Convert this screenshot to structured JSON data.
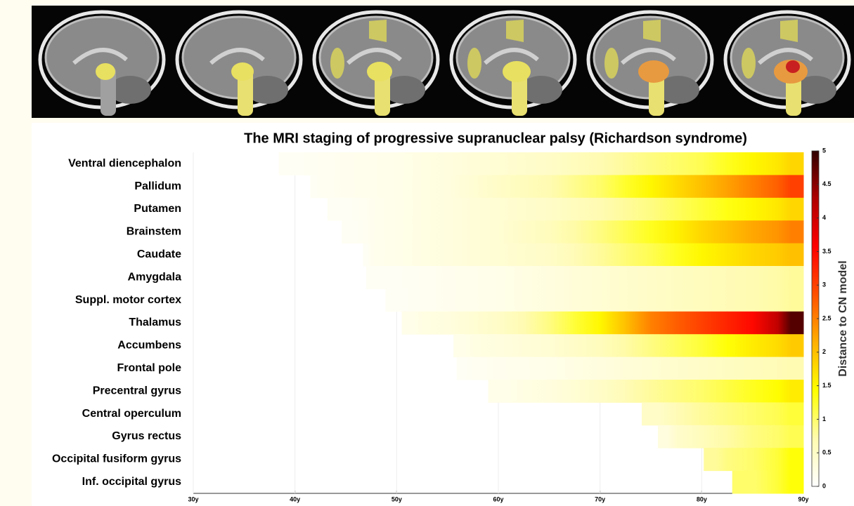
{
  "chart_data": {
    "type": "heatmap",
    "title": "The MRI staging of progressive supranuclear palsy (Richardson syndrome)",
    "x": [
      40,
      45,
      50,
      55,
      60,
      65,
      70,
      75,
      80,
      85,
      90
    ],
    "xlim": [
      30,
      90
    ],
    "xticks": [
      {
        "value": 30,
        "label": "30y"
      },
      {
        "value": 40,
        "label": "40y"
      },
      {
        "value": 50,
        "label": "50y"
      },
      {
        "value": 60,
        "label": "60y"
      },
      {
        "value": 70,
        "label": "70y"
      },
      {
        "value": 80,
        "label": "80y"
      },
      {
        "value": 90,
        "label": "90y"
      }
    ],
    "series": [
      {
        "name": "Ventral diencephalon",
        "start": 38.4,
        "values": [
          0.1,
          0.15,
          0.2,
          0.3,
          0.4,
          0.5,
          0.7,
          0.9,
          1.1,
          1.5,
          1.8
        ]
      },
      {
        "name": "Pallidum",
        "start": 41.5,
        "values": [
          0.1,
          0.15,
          0.2,
          0.3,
          0.5,
          0.7,
          1.0,
          1.5,
          2.0,
          2.5,
          3.0
        ]
      },
      {
        "name": "Putamen",
        "start": 43.2,
        "values": [
          null,
          0.1,
          0.2,
          0.3,
          0.4,
          0.5,
          0.7,
          0.9,
          1.2,
          1.5,
          1.8
        ]
      },
      {
        "name": "Brainstem",
        "start": 44.6,
        "values": [
          null,
          0.1,
          0.2,
          0.3,
          0.4,
          0.6,
          0.9,
          1.3,
          1.8,
          2.2,
          2.5
        ]
      },
      {
        "name": "Caudate",
        "start": 46.7,
        "values": [
          null,
          0.1,
          0.2,
          0.3,
          0.4,
          0.5,
          0.8,
          1.1,
          1.5,
          1.8,
          2.0
        ]
      },
      {
        "name": "Amygdala",
        "start": 47,
        "values": [
          null,
          0.1,
          0.1,
          0.15,
          0.2,
          0.3,
          0.4,
          0.5,
          0.6,
          0.7,
          0.8
        ]
      },
      {
        "name": "Suppl. motor cortex",
        "start": 48.9,
        "values": [
          null,
          null,
          0.1,
          0.15,
          0.2,
          0.3,
          0.4,
          0.5,
          0.6,
          0.7,
          0.8
        ]
      },
      {
        "name": "Thalamus",
        "start": 50.5,
        "values": [
          null,
          null,
          0.2,
          0.3,
          0.5,
          0.9,
          1.5,
          2.5,
          3.0,
          3.5,
          4.8
        ]
      },
      {
        "name": "Accumbens",
        "start": 55.6,
        "values": [
          null,
          null,
          null,
          0.2,
          0.3,
          0.4,
          0.6,
          0.9,
          1.2,
          1.6,
          1.9
        ]
      },
      {
        "name": "Frontal pole",
        "start": 55.9,
        "values": [
          null,
          null,
          null,
          0.1,
          0.15,
          0.2,
          0.3,
          0.4,
          0.5,
          0.6,
          0.7
        ]
      },
      {
        "name": "Precentral gyrus",
        "start": 59,
        "values": [
          null,
          null,
          null,
          null,
          0.2,
          0.3,
          0.5,
          0.8,
          1.0,
          1.3,
          1.6
        ]
      },
      {
        "name": "Central operculum",
        "start": 74.1,
        "values": [
          null,
          null,
          null,
          null,
          null,
          null,
          null,
          0.5,
          0.8,
          1.0,
          1.2
        ]
      },
      {
        "name": "Gyrus rectus",
        "start": 75.7,
        "values": [
          null,
          null,
          null,
          null,
          null,
          null,
          null,
          0.3,
          0.6,
          0.9,
          1.1
        ]
      },
      {
        "name": "Occipital fusiform gyrus",
        "start": 80.2,
        "values": [
          null,
          null,
          null,
          null,
          null,
          null,
          null,
          null,
          0.8,
          1.0,
          1.4
        ]
      },
      {
        "name": "Inf. occipital gyrus",
        "start": 83,
        "values": [
          null,
          null,
          null,
          null,
          null,
          null,
          null,
          null,
          null,
          1.0,
          1.4
        ]
      }
    ],
    "colormap": [
      "#ffffff",
      "#fffbb0",
      "#ffff00",
      "#ffb000",
      "#ff5000",
      "#ff0000",
      "#b00000",
      "#300000"
    ],
    "zlim": [
      0,
      5
    ],
    "zticks": [
      0,
      0.5,
      1,
      1.5,
      2,
      2.5,
      3,
      3.5,
      4,
      4.5,
      5
    ],
    "colorbar_label": "Distance to CN model"
  }
}
